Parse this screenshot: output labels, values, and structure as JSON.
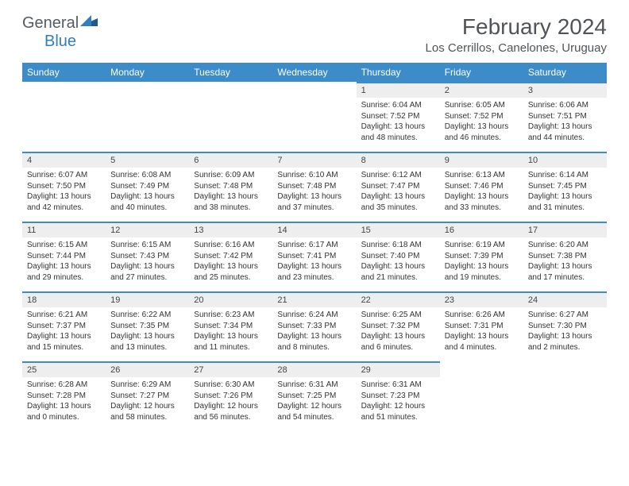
{
  "logo": {
    "text1": "General",
    "text2": "Blue",
    "color1": "#555b60",
    "color2": "#2f7fc1",
    "mark_color": "#1e5a8e"
  },
  "header": {
    "month_title": "February 2024",
    "location": "Los Cerrillos, Canelones, Uruguay"
  },
  "colors": {
    "header_bg": "#3b8cc9",
    "header_text": "#ffffff",
    "day_bar_bg": "#eeeeee",
    "day_bar_border": "#3b8cc9"
  },
  "day_headers": [
    "Sunday",
    "Monday",
    "Tuesday",
    "Wednesday",
    "Thursday",
    "Friday",
    "Saturday"
  ],
  "weeks": [
    [
      null,
      null,
      null,
      null,
      {
        "n": "1",
        "sr": "Sunrise: 6:04 AM",
        "ss": "Sunset: 7:52 PM",
        "dl": "Daylight: 13 hours and 48 minutes."
      },
      {
        "n": "2",
        "sr": "Sunrise: 6:05 AM",
        "ss": "Sunset: 7:52 PM",
        "dl": "Daylight: 13 hours and 46 minutes."
      },
      {
        "n": "3",
        "sr": "Sunrise: 6:06 AM",
        "ss": "Sunset: 7:51 PM",
        "dl": "Daylight: 13 hours and 44 minutes."
      }
    ],
    [
      {
        "n": "4",
        "sr": "Sunrise: 6:07 AM",
        "ss": "Sunset: 7:50 PM",
        "dl": "Daylight: 13 hours and 42 minutes."
      },
      {
        "n": "5",
        "sr": "Sunrise: 6:08 AM",
        "ss": "Sunset: 7:49 PM",
        "dl": "Daylight: 13 hours and 40 minutes."
      },
      {
        "n": "6",
        "sr": "Sunrise: 6:09 AM",
        "ss": "Sunset: 7:48 PM",
        "dl": "Daylight: 13 hours and 38 minutes."
      },
      {
        "n": "7",
        "sr": "Sunrise: 6:10 AM",
        "ss": "Sunset: 7:48 PM",
        "dl": "Daylight: 13 hours and 37 minutes."
      },
      {
        "n": "8",
        "sr": "Sunrise: 6:12 AM",
        "ss": "Sunset: 7:47 PM",
        "dl": "Daylight: 13 hours and 35 minutes."
      },
      {
        "n": "9",
        "sr": "Sunrise: 6:13 AM",
        "ss": "Sunset: 7:46 PM",
        "dl": "Daylight: 13 hours and 33 minutes."
      },
      {
        "n": "10",
        "sr": "Sunrise: 6:14 AM",
        "ss": "Sunset: 7:45 PM",
        "dl": "Daylight: 13 hours and 31 minutes."
      }
    ],
    [
      {
        "n": "11",
        "sr": "Sunrise: 6:15 AM",
        "ss": "Sunset: 7:44 PM",
        "dl": "Daylight: 13 hours and 29 minutes."
      },
      {
        "n": "12",
        "sr": "Sunrise: 6:15 AM",
        "ss": "Sunset: 7:43 PM",
        "dl": "Daylight: 13 hours and 27 minutes."
      },
      {
        "n": "13",
        "sr": "Sunrise: 6:16 AM",
        "ss": "Sunset: 7:42 PM",
        "dl": "Daylight: 13 hours and 25 minutes."
      },
      {
        "n": "14",
        "sr": "Sunrise: 6:17 AM",
        "ss": "Sunset: 7:41 PM",
        "dl": "Daylight: 13 hours and 23 minutes."
      },
      {
        "n": "15",
        "sr": "Sunrise: 6:18 AM",
        "ss": "Sunset: 7:40 PM",
        "dl": "Daylight: 13 hours and 21 minutes."
      },
      {
        "n": "16",
        "sr": "Sunrise: 6:19 AM",
        "ss": "Sunset: 7:39 PM",
        "dl": "Daylight: 13 hours and 19 minutes."
      },
      {
        "n": "17",
        "sr": "Sunrise: 6:20 AM",
        "ss": "Sunset: 7:38 PM",
        "dl": "Daylight: 13 hours and 17 minutes."
      }
    ],
    [
      {
        "n": "18",
        "sr": "Sunrise: 6:21 AM",
        "ss": "Sunset: 7:37 PM",
        "dl": "Daylight: 13 hours and 15 minutes."
      },
      {
        "n": "19",
        "sr": "Sunrise: 6:22 AM",
        "ss": "Sunset: 7:35 PM",
        "dl": "Daylight: 13 hours and 13 minutes."
      },
      {
        "n": "20",
        "sr": "Sunrise: 6:23 AM",
        "ss": "Sunset: 7:34 PM",
        "dl": "Daylight: 13 hours and 11 minutes."
      },
      {
        "n": "21",
        "sr": "Sunrise: 6:24 AM",
        "ss": "Sunset: 7:33 PM",
        "dl": "Daylight: 13 hours and 8 minutes."
      },
      {
        "n": "22",
        "sr": "Sunrise: 6:25 AM",
        "ss": "Sunset: 7:32 PM",
        "dl": "Daylight: 13 hours and 6 minutes."
      },
      {
        "n": "23",
        "sr": "Sunrise: 6:26 AM",
        "ss": "Sunset: 7:31 PM",
        "dl": "Daylight: 13 hours and 4 minutes."
      },
      {
        "n": "24",
        "sr": "Sunrise: 6:27 AM",
        "ss": "Sunset: 7:30 PM",
        "dl": "Daylight: 13 hours and 2 minutes."
      }
    ],
    [
      {
        "n": "25",
        "sr": "Sunrise: 6:28 AM",
        "ss": "Sunset: 7:28 PM",
        "dl": "Daylight: 13 hours and 0 minutes."
      },
      {
        "n": "26",
        "sr": "Sunrise: 6:29 AM",
        "ss": "Sunset: 7:27 PM",
        "dl": "Daylight: 12 hours and 58 minutes."
      },
      {
        "n": "27",
        "sr": "Sunrise: 6:30 AM",
        "ss": "Sunset: 7:26 PM",
        "dl": "Daylight: 12 hours and 56 minutes."
      },
      {
        "n": "28",
        "sr": "Sunrise: 6:31 AM",
        "ss": "Sunset: 7:25 PM",
        "dl": "Daylight: 12 hours and 54 minutes."
      },
      {
        "n": "29",
        "sr": "Sunrise: 6:31 AM",
        "ss": "Sunset: 7:23 PM",
        "dl": "Daylight: 12 hours and 51 minutes."
      },
      null,
      null
    ]
  ]
}
